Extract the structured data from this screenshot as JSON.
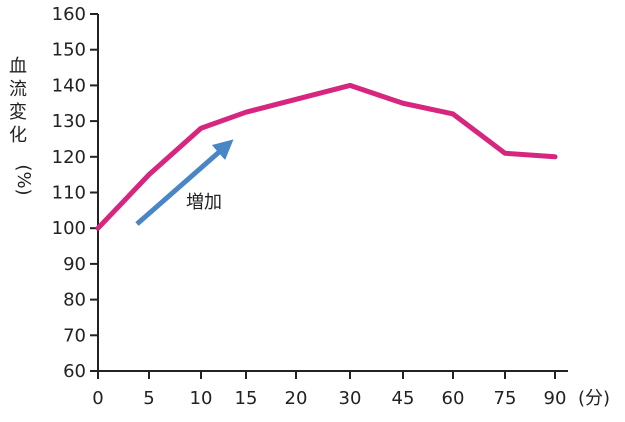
{
  "chart_data": {
    "type": "line",
    "ylabel_chars": [
      "血",
      "流",
      "変",
      "化"
    ],
    "ylabel_unit": "(%)",
    "x_unit": "(分)",
    "x_ticks": [
      "0",
      "5",
      "10",
      "15",
      "20",
      "30",
      "45",
      "60",
      "75",
      "90"
    ],
    "y_ticks": [
      60,
      70,
      80,
      90,
      100,
      110,
      120,
      130,
      140,
      150,
      160
    ],
    "ylim": [
      60,
      160
    ],
    "grid": false,
    "series": [
      {
        "color": "#d6267e",
        "points": [
          {
            "x": "0",
            "y": 100
          },
          {
            "x": "5",
            "y": 115
          },
          {
            "x": "10",
            "y": 128
          },
          {
            "x": "15",
            "y": 132.5
          },
          {
            "x": "30",
            "y": 140
          },
          {
            "x": "45",
            "y": 135
          },
          {
            "x": "60",
            "y": 132
          },
          {
            "x": "75",
            "y": 121
          },
          {
            "x": "90",
            "y": 120
          }
        ]
      }
    ],
    "annotation": {
      "text": "増加",
      "arrow_color": "#4a86c5",
      "arrow_from": {
        "x": "0",
        "y": 101
      },
      "arrow_to": {
        "x": "15",
        "y": 125
      }
    }
  }
}
